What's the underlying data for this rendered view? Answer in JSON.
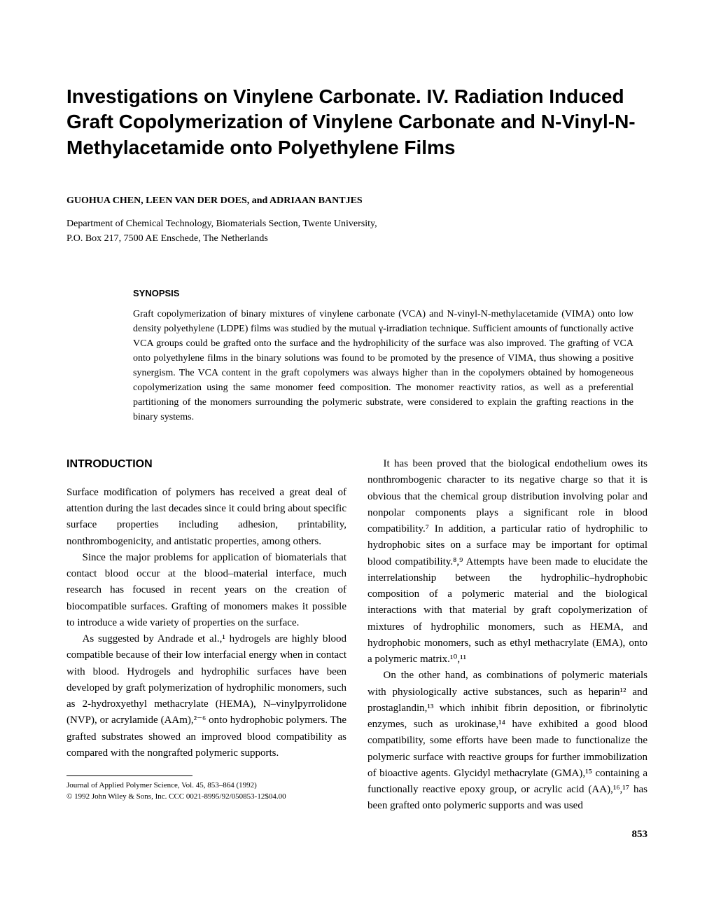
{
  "title": "Investigations on Vinylene Carbonate. IV. Radiation Induced Graft Copolymerization of Vinylene Carbonate and N-Vinyl-N-Methylacetamide onto Polyethylene Films",
  "authors": "GUOHUA CHEN, LEEN VAN DER DOES, and ADRIAAN BANTJES",
  "affiliation_line1": "Department of Chemical Technology, Biomaterials Section, Twente University,",
  "affiliation_line2": "P.O. Box 217, 7500 AE Enschede, The Netherlands",
  "synopsis": {
    "heading": "SYNOPSIS",
    "text": "Graft copolymerization of binary mixtures of vinylene carbonate (VCA) and N-vinyl-N-methylacetamide (VIMA) onto low density polyethylene (LDPE) films was studied by the mutual γ-irradiation technique. Sufficient amounts of functionally active VCA groups could be grafted onto the surface and the hydrophilicity of the surface was also improved. The grafting of VCA onto polyethylene films in the binary solutions was found to be promoted by the presence of VIMA, thus showing a positive synergism. The VCA content in the graft copolymers was always higher than in the copolymers obtained by homogeneous copolymerization using the same monomer feed composition. The monomer reactivity ratios, as well as a preferential partitioning of the monomers surrounding the polymeric substrate, were considered to explain the grafting reactions in the binary systems."
  },
  "intro_heading": "INTRODUCTION",
  "left_col": {
    "p1": "Surface modification of polymers has received a great deal of attention during the last decades since it could bring about specific surface properties including adhesion, printability, nonthrombogenicity, and antistatic properties, among others.",
    "p2": "Since the major problems for application of biomaterials that contact blood occur at the blood–material interface, much research has focused in recent years on the creation of biocompatible surfaces. Grafting of monomers makes it possible to introduce a wide variety of properties on the surface.",
    "p3": "As suggested by Andrade et al.,¹ hydrogels are highly blood compatible because of their low interfacial energy when in contact with blood. Hydrogels and hydrophilic surfaces have been developed by graft polymerization of hydrophilic monomers, such as 2-hydroxyethyl methacrylate (HEMA), N–vinylpyrrolidone (NVP), or acrylamide (AAm),²⁻⁶ onto hydrophobic polymers. The grafted substrates showed an improved blood compatibility as compared with the nongrafted polymeric supports."
  },
  "right_col": {
    "p1": "It has been proved that the biological endothelium owes its nonthrombogenic character to its negative charge so that it is obvious that the chemical group distribution involving polar and nonpolar components plays a significant role in blood compatibility.⁷ In addition, a particular ratio of hydrophilic to hydrophobic sites on a surface may be important for optimal blood compatibility.⁸,⁹ Attempts have been made to elucidate the interrelationship between the hydrophilic–hydrophobic composition of a polymeric material and the biological interactions with that material by graft copolymerization of mixtures of hydrophilic monomers, such as HEMA, and hydrophobic monomers, such as ethyl methacrylate (EMA), onto a polymeric matrix.¹⁰,¹¹",
    "p2": "On the other hand, as combinations of polymeric materials with physiologically active substances, such as heparin¹² and prostaglandin,¹³ which inhibit fibrin deposition, or fibrinolytic enzymes, such as urokinase,¹⁴ have exhibited a good blood compatibility, some efforts have been made to functionalize the polymeric surface with reactive groups for further immobilization of bioactive agents. Glycidyl methacrylate (GMA),¹⁵ containing a functionally reactive epoxy group, or acrylic acid (AA),¹⁶,¹⁷ has been grafted onto polymeric supports and was used"
  },
  "footnote": {
    "line1": "Journal of Applied Polymer Science, Vol. 45, 853–864 (1992)",
    "line2": "© 1992 John Wiley & Sons, Inc.          CCC 0021-8995/92/050853-12$04.00"
  },
  "page_number": "853"
}
